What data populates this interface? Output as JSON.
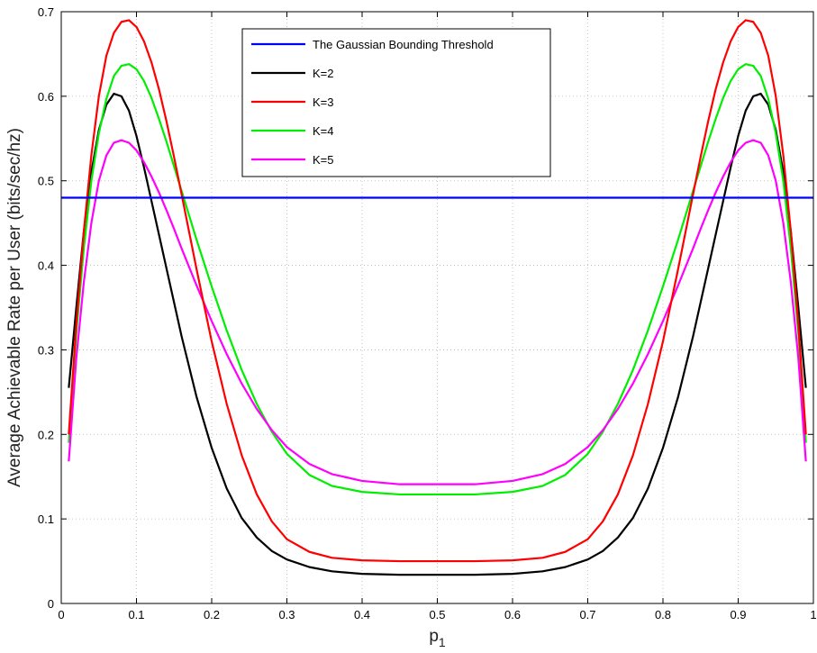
{
  "chart_data": {
    "type": "line",
    "title": "",
    "xlabel": "p",
    "xlabel_subscript": "1",
    "ylabel": "Average Achievable Rate per User (bits/sec/hz)",
    "xlim": [
      0,
      1
    ],
    "ylim": [
      0,
      0.7
    ],
    "xticks": [
      0,
      0.1,
      0.2,
      0.3,
      0.4,
      0.5,
      0.6,
      0.7,
      0.8,
      0.9,
      1
    ],
    "xtick_labels": [
      "0",
      "0.1",
      "0.2",
      "0.3",
      "0.4",
      "0.5",
      "0.6",
      "0.7",
      "0.8",
      "0.9",
      "1"
    ],
    "yticks": [
      0,
      0.1,
      0.2,
      0.3,
      0.4,
      0.5,
      0.6,
      0.7
    ],
    "ytick_labels": [
      "0",
      "0.1",
      "0.2",
      "0.3",
      "0.4",
      "0.5",
      "0.6",
      "0.7"
    ],
    "grid": true,
    "legend_position": "top-center",
    "series": [
      {
        "name": "The Gaussian Bounding Threshold",
        "color": "#0000ff",
        "x": [
          0,
          1
        ],
        "y": [
          0.48,
          0.48
        ]
      },
      {
        "name": "K=2",
        "color": "#000000",
        "x": [
          0.01,
          0.02,
          0.03,
          0.04,
          0.05,
          0.06,
          0.07,
          0.08,
          0.09,
          0.1,
          0.11,
          0.12,
          0.13,
          0.14,
          0.15,
          0.16,
          0.18,
          0.2,
          0.22,
          0.24,
          0.26,
          0.28,
          0.3,
          0.33,
          0.36,
          0.4,
          0.45,
          0.5,
          0.55,
          0.6,
          0.64,
          0.67,
          0.7,
          0.72,
          0.74,
          0.76,
          0.78,
          0.8,
          0.82,
          0.84,
          0.85,
          0.86,
          0.87,
          0.88,
          0.89,
          0.9,
          0.91,
          0.92,
          0.93,
          0.94,
          0.95,
          0.96,
          0.97,
          0.98,
          0.99
        ],
        "y": [
          0.255,
          0.35,
          0.44,
          0.51,
          0.56,
          0.59,
          0.603,
          0.6,
          0.583,
          0.553,
          0.516,
          0.476,
          0.436,
          0.396,
          0.356,
          0.316,
          0.244,
          0.184,
          0.136,
          0.101,
          0.078,
          0.062,
          0.052,
          0.043,
          0.038,
          0.035,
          0.034,
          0.034,
          0.034,
          0.035,
          0.038,
          0.043,
          0.052,
          0.062,
          0.078,
          0.101,
          0.136,
          0.184,
          0.244,
          0.316,
          0.356,
          0.396,
          0.436,
          0.476,
          0.516,
          0.553,
          0.583,
          0.6,
          0.603,
          0.59,
          0.56,
          0.51,
          0.44,
          0.35,
          0.255
        ]
      },
      {
        "name": "K=3",
        "color": "#ff0000",
        "x": [
          0.01,
          0.02,
          0.03,
          0.04,
          0.05,
          0.06,
          0.07,
          0.08,
          0.09,
          0.1,
          0.11,
          0.12,
          0.13,
          0.14,
          0.15,
          0.16,
          0.18,
          0.2,
          0.22,
          0.24,
          0.26,
          0.28,
          0.3,
          0.33,
          0.36,
          0.4,
          0.45,
          0.5,
          0.55,
          0.6,
          0.64,
          0.67,
          0.7,
          0.72,
          0.74,
          0.76,
          0.78,
          0.8,
          0.82,
          0.84,
          0.85,
          0.86,
          0.87,
          0.88,
          0.89,
          0.9,
          0.91,
          0.92,
          0.93,
          0.94,
          0.95,
          0.96,
          0.97,
          0.98,
          0.99
        ],
        "y": [
          0.2,
          0.33,
          0.44,
          0.53,
          0.6,
          0.648,
          0.675,
          0.688,
          0.69,
          0.682,
          0.665,
          0.64,
          0.608,
          0.57,
          0.528,
          0.484,
          0.395,
          0.31,
          0.236,
          0.175,
          0.129,
          0.097,
          0.076,
          0.061,
          0.054,
          0.051,
          0.05,
          0.05,
          0.05,
          0.051,
          0.054,
          0.061,
          0.076,
          0.097,
          0.129,
          0.175,
          0.236,
          0.31,
          0.395,
          0.484,
          0.528,
          0.57,
          0.608,
          0.64,
          0.665,
          0.682,
          0.69,
          0.688,
          0.675,
          0.648,
          0.6,
          0.53,
          0.44,
          0.33,
          0.2
        ]
      },
      {
        "name": "K=4",
        "color": "#00ee00",
        "x": [
          0.01,
          0.02,
          0.03,
          0.04,
          0.05,
          0.06,
          0.07,
          0.08,
          0.09,
          0.1,
          0.11,
          0.12,
          0.13,
          0.14,
          0.15,
          0.16,
          0.18,
          0.2,
          0.22,
          0.24,
          0.26,
          0.28,
          0.3,
          0.33,
          0.36,
          0.4,
          0.45,
          0.5,
          0.55,
          0.6,
          0.64,
          0.67,
          0.7,
          0.72,
          0.74,
          0.76,
          0.78,
          0.8,
          0.82,
          0.84,
          0.85,
          0.86,
          0.87,
          0.88,
          0.89,
          0.9,
          0.91,
          0.92,
          0.93,
          0.94,
          0.95,
          0.96,
          0.97,
          0.98,
          0.99
        ],
        "y": [
          0.19,
          0.32,
          0.42,
          0.5,
          0.556,
          0.597,
          0.624,
          0.636,
          0.638,
          0.632,
          0.618,
          0.598,
          0.573,
          0.546,
          0.517,
          0.488,
          0.43,
          0.375,
          0.323,
          0.276,
          0.236,
          0.203,
          0.177,
          0.152,
          0.139,
          0.132,
          0.129,
          0.129,
          0.129,
          0.132,
          0.139,
          0.152,
          0.177,
          0.203,
          0.236,
          0.276,
          0.323,
          0.375,
          0.43,
          0.488,
          0.517,
          0.546,
          0.573,
          0.598,
          0.618,
          0.632,
          0.638,
          0.636,
          0.624,
          0.597,
          0.556,
          0.5,
          0.42,
          0.32,
          0.19
        ]
      },
      {
        "name": "K=5",
        "color": "#ff00ff",
        "x": [
          0.01,
          0.02,
          0.03,
          0.04,
          0.05,
          0.06,
          0.07,
          0.08,
          0.09,
          0.1,
          0.11,
          0.12,
          0.13,
          0.14,
          0.15,
          0.16,
          0.18,
          0.2,
          0.22,
          0.24,
          0.26,
          0.28,
          0.3,
          0.33,
          0.36,
          0.4,
          0.45,
          0.5,
          0.55,
          0.6,
          0.64,
          0.67,
          0.7,
          0.72,
          0.74,
          0.76,
          0.78,
          0.8,
          0.82,
          0.84,
          0.85,
          0.86,
          0.87,
          0.88,
          0.89,
          0.9,
          0.91,
          0.92,
          0.93,
          0.94,
          0.95,
          0.96,
          0.97,
          0.98,
          0.99
        ],
        "y": [
          0.168,
          0.29,
          0.38,
          0.45,
          0.5,
          0.53,
          0.545,
          0.548,
          0.545,
          0.536,
          0.522,
          0.505,
          0.486,
          0.465,
          0.443,
          0.42,
          0.376,
          0.334,
          0.295,
          0.26,
          0.23,
          0.205,
          0.185,
          0.165,
          0.153,
          0.145,
          0.141,
          0.141,
          0.141,
          0.145,
          0.153,
          0.165,
          0.185,
          0.205,
          0.23,
          0.26,
          0.295,
          0.334,
          0.376,
          0.42,
          0.443,
          0.465,
          0.486,
          0.505,
          0.522,
          0.536,
          0.545,
          0.548,
          0.545,
          0.53,
          0.5,
          0.45,
          0.38,
          0.29,
          0.168
        ]
      }
    ]
  }
}
